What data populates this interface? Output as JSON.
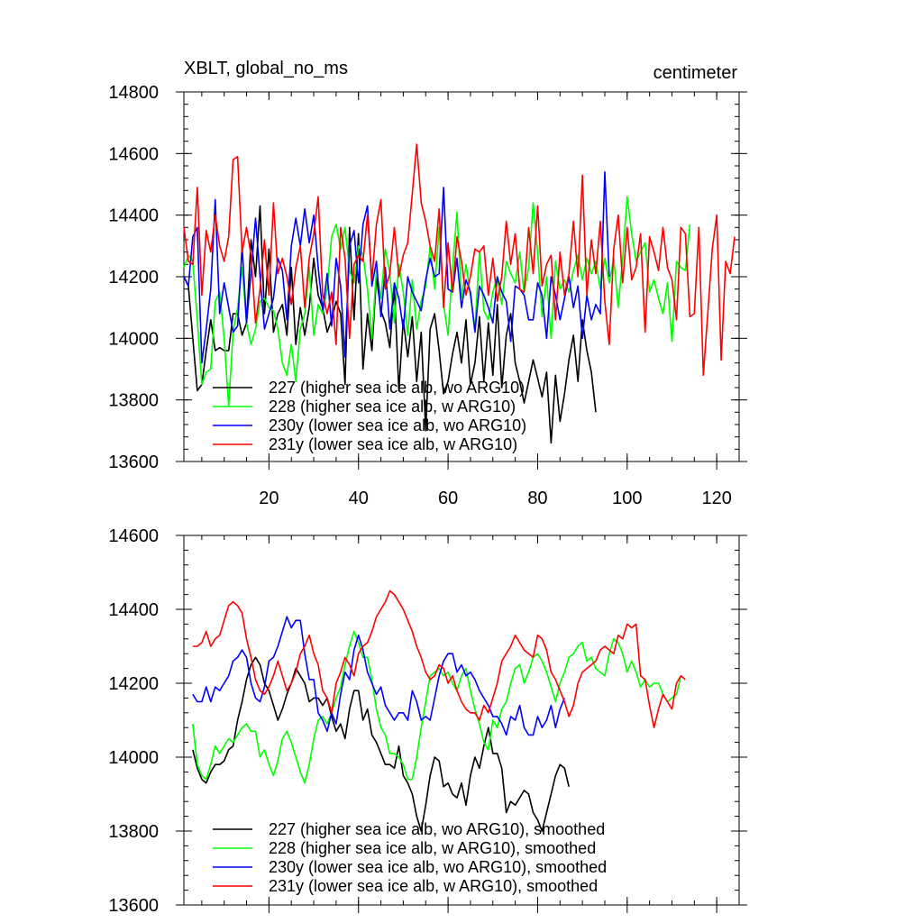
{
  "figure": {
    "title_left": "XBLT, global_no_ms",
    "title_right": "centimeter"
  },
  "colors": {
    "227": "#000000",
    "228": "#00ff00",
    "230y": "#0000ff",
    "231y": "#ff0000"
  },
  "chart_data": [
    {
      "type": "line",
      "title": "XBLT, global_no_ms",
      "units": "centimeter",
      "xlim": [
        1,
        125
      ],
      "ylim": [
        13600,
        14800
      ],
      "xticks": [
        20,
        40,
        60,
        80,
        100,
        120
      ],
      "xtick_labels": [
        "20",
        "40",
        "60",
        "80",
        "100",
        "120"
      ],
      "yticks": [
        13600,
        13800,
        14000,
        14200,
        14400,
        14600,
        14800
      ],
      "ytick_labels": [
        "13600",
        "13800",
        "14000",
        "14200",
        "14400",
        "14600",
        "14800"
      ],
      "series": [
        {
          "key": "227",
          "name": "227 (higher sea ice alb, wo ARG10)",
          "x_start": 1,
          "values": [
            14200,
            14170,
            14000,
            13830,
            13850,
            13960,
            14060,
            13960,
            13970,
            13960,
            13960,
            14080,
            14080,
            14010,
            14050,
            14320,
            14200,
            14430,
            14080,
            14290,
            14020,
            14080,
            14110,
            14010,
            14230,
            13980,
            14100,
            14010,
            14100,
            14260,
            14140,
            14100,
            14020,
            14060,
            14120,
            14080,
            13850,
            14360,
            14060,
            14340,
            13900,
            14080,
            13960,
            14200,
            14090,
            14050,
            13970,
            14170,
            13830,
            14060,
            13940,
            14070,
            13860,
            14020,
            13700,
            14030,
            14080,
            13960,
            13820,
            13860,
            13950,
            14020,
            13920,
            14060,
            13850,
            13920,
            14070,
            13860,
            14050,
            13880,
            14110,
            13840,
            14010,
            14080,
            13920,
            13860,
            13790,
            13860,
            13930,
            13870,
            13810,
            13890,
            13660,
            13880,
            13730,
            13820,
            13930,
            14010,
            13860,
            14060,
            13960,
            13890,
            13760
          ]
        },
        {
          "key": "228",
          "name": "228 (higher sea ice alb, w ARG10)",
          "x_start": 1,
          "values": [
            14230,
            14270,
            14250,
            14060,
            13850,
            13890,
            13900,
            14120,
            14150,
            14000,
            13780,
            14020,
            14100,
            14230,
            14050,
            13980,
            14030,
            14120,
            14130,
            14100,
            14090,
            14030,
            13920,
            13880,
            13980,
            13860,
            14030,
            14080,
            14230,
            14010,
            14110,
            14080,
            14160,
            14330,
            14370,
            14290,
            14360,
            14220,
            14180,
            14300,
            14270,
            14160,
            14000,
            14220,
            14130,
            14290,
            14210,
            14050,
            14240,
            14150,
            14010,
            14190,
            14030,
            14120,
            14170,
            14300,
            14160,
            14360,
            14110,
            14010,
            14230,
            14410,
            14130,
            14240,
            14140,
            14030,
            14280,
            14090,
            14060,
            14150,
            14200,
            14110,
            14250,
            14210,
            14180,
            14280,
            14150,
            14230,
            14440,
            14280,
            14070,
            14200,
            14000,
            14250,
            14160,
            14190,
            14150,
            14220,
            14270,
            14190,
            14260,
            14210,
            14250,
            14160,
            14260,
            14180,
            14260,
            14100,
            14260,
            14460,
            14340,
            14250,
            14280,
            14310,
            14150,
            14190,
            14130,
            14080,
            14180,
            13990,
            14250,
            14230,
            14220,
            14370
          ]
        },
        {
          "key": "230y",
          "name": "230y (lower sea ice alb, wo ARG10)",
          "x_start": 1,
          "values": [
            14200,
            14170,
            14330,
            14360,
            13920,
            14030,
            14160,
            14450,
            14080,
            14180,
            14100,
            14020,
            14040,
            14300,
            14050,
            14210,
            14390,
            14200,
            14030,
            14080,
            14130,
            14260,
            14220,
            14060,
            14300,
            14390,
            14300,
            14420,
            14310,
            14400,
            14230,
            14090,
            14210,
            14040,
            14260,
            14170,
            13940,
            14300,
            14350,
            14180,
            14370,
            14430,
            14170,
            14250,
            14070,
            14230,
            14030,
            14180,
            14130,
            14030,
            14200,
            14150,
            14120,
            14090,
            14190,
            14260,
            14200,
            14210,
            14490,
            14160,
            14150,
            14260,
            14100,
            14190,
            14150,
            14020,
            14170,
            14140,
            14100,
            14050,
            14200,
            14150,
            14120,
            13990,
            14170,
            14160,
            14140,
            14060,
            14060,
            14180,
            14140,
            14000,
            14200,
            14140,
            14060,
            14130,
            14200,
            14100,
            14170,
            14000,
            14140,
            14060,
            14110,
            14080,
            14540,
            14200
          ]
        },
        {
          "key": "231y",
          "name": "231y (lower sea ice alb, w ARG10)",
          "x_start": 1,
          "values": [
            14360,
            14250,
            14240,
            14490,
            14140,
            14350,
            14280,
            14400,
            14300,
            14250,
            14330,
            14580,
            14590,
            14280,
            14360,
            14270,
            14050,
            14160,
            14320,
            14140,
            14440,
            14210,
            14260,
            14200,
            14110,
            14230,
            14300,
            14100,
            14260,
            14340,
            14460,
            14140,
            14080,
            14150,
            13980,
            14360,
            14260,
            14000,
            14240,
            14270,
            14250,
            14400,
            14190,
            14370,
            14450,
            14160,
            14210,
            14360,
            14200,
            14270,
            14310,
            14470,
            14630,
            14440,
            14380,
            14300,
            14250,
            14420,
            14100,
            14310,
            14150,
            14330,
            14250,
            14140,
            14200,
            14290,
            14280,
            14300,
            14140,
            14260,
            14120,
            14200,
            14380,
            14240,
            14340,
            14160,
            14150,
            14360,
            14210,
            14430,
            14170,
            14240,
            14270,
            14060,
            14280,
            14140,
            14210,
            14380,
            14200,
            14530,
            14140,
            14320,
            14210,
            14380,
            14120,
            13980,
            14290,
            14400,
            14180,
            14360,
            14190,
            14230,
            14340,
            14020,
            14330,
            14280,
            14220,
            14360,
            14230,
            14190,
            14060,
            14360,
            14340,
            14070,
            14080,
            14360,
            13880,
            14080,
            14290,
            14400,
            13930,
            14250,
            14210,
            14330
          ]
        }
      ],
      "legend": [
        "227 (higher sea ice alb, wo ARG10)",
        "228 (higher sea ice alb, w ARG10)",
        "230y (lower sea ice alb, wo ARG10)",
        "231y (lower sea ice alb, w ARG10)"
      ],
      "legend_position": "bottom-left"
    },
    {
      "type": "line",
      "xlim": [
        1,
        125
      ],
      "ylim": [
        13600,
        14600
      ],
      "xticks": [
        20,
        40,
        60,
        80,
        100,
        120
      ],
      "yticks": [
        13600,
        13800,
        14000,
        14200,
        14400,
        14600
      ],
      "ytick_labels": [
        "13600",
        "13800",
        "14000",
        "14200",
        "14400",
        "14600"
      ],
      "series": [
        {
          "key": "227",
          "name": "227 (higher sea ice alb, wo ARG10), smoothed",
          "x_start": 3,
          "values": [
            14020,
            13970,
            13940,
            13930,
            13960,
            13980,
            13980,
            13990,
            14020,
            14030,
            14100,
            14150,
            14210,
            14250,
            14270,
            14250,
            14200,
            14180,
            14140,
            14100,
            14130,
            14170,
            14200,
            14240,
            14220,
            14200,
            14150,
            14160,
            14160,
            14140,
            14160,
            14110,
            14070,
            14090,
            14050,
            14130,
            14180,
            14180,
            14100,
            14130,
            14060,
            14040,
            14010,
            13980,
            13980,
            13970,
            14030,
            13950,
            13930,
            13900,
            13840,
            13800,
            13870,
            13950,
            14000,
            13990,
            13920,
            13930,
            13900,
            13890,
            13930,
            13870,
            13950,
            14000,
            13970,
            14030,
            14080,
            14010,
            14010,
            13970,
            13850,
            13880,
            13870,
            13890,
            13910,
            13900,
            13850,
            13830,
            13800,
            13850,
            13900,
            13950,
            13980,
            13970,
            13920
          ]
        },
        {
          "key": "228",
          "name": "228 (higher sea ice alb, w ARG10), smoothed",
          "x_start": 3,
          "values": [
            14090,
            13980,
            13950,
            13940,
            13980,
            14030,
            14010,
            14030,
            14050,
            14040,
            14060,
            14080,
            14090,
            14070,
            14070,
            14000,
            14020,
            13980,
            13950,
            13990,
            14050,
            14070,
            14040,
            14000,
            13960,
            13930,
            13980,
            14050,
            14100,
            14110,
            14090,
            14120,
            14160,
            14190,
            14250,
            14300,
            14340,
            14310,
            14270,
            14270,
            14210,
            14130,
            14080,
            14060,
            14010,
            14010,
            14000,
            13980,
            13940,
            13940,
            14000,
            14080,
            14150,
            14220,
            14230,
            14240,
            14220,
            14230,
            14200,
            14180,
            14220,
            14240,
            14180,
            14130,
            14090,
            14040,
            14020,
            14100,
            14080,
            14130,
            14150,
            14200,
            14240,
            14250,
            14200,
            14230,
            14270,
            14280,
            14260,
            14230,
            14190,
            14150,
            14200,
            14230,
            14270,
            14280,
            14300,
            14310,
            14260,
            14270,
            14240,
            14230,
            14220,
            14280,
            14320,
            14310,
            14280,
            14230,
            14260,
            14230,
            14190,
            14210,
            14190,
            14200,
            14200,
            14170,
            14150,
            14160,
            14170,
            14220
          ]
        },
        {
          "key": "230y",
          "name": "230y (lower sea ice alb, wo ARG10), smoothed",
          "x_start": 3,
          "values": [
            14170,
            14150,
            14150,
            14190,
            14150,
            14190,
            14180,
            14200,
            14220,
            14260,
            14270,
            14290,
            14270,
            14200,
            14160,
            14150,
            14190,
            14260,
            14270,
            14300,
            14340,
            14380,
            14350,
            14370,
            14370,
            14280,
            14210,
            14210,
            14120,
            14100,
            14070,
            14120,
            14090,
            14170,
            14230,
            14210,
            14290,
            14330,
            14290,
            14230,
            14200,
            14170,
            14190,
            14140,
            14120,
            14100,
            14120,
            14120,
            14100,
            14180,
            14150,
            14100,
            14110,
            14100,
            14160,
            14220,
            14260,
            14280,
            14280,
            14230,
            14250,
            14220,
            14230,
            14210,
            14180,
            14160,
            14140,
            14110,
            14110,
            14090,
            14060,
            14110,
            14100,
            14140,
            14080,
            14060,
            14060,
            14110,
            14080,
            14100,
            14140,
            14080,
            14130,
            14160
          ]
        },
        {
          "key": "231y",
          "name": "231y (lower sea ice alb, w ARG10), smoothed",
          "x_start": 3,
          "values": [
            14300,
            14300,
            14310,
            14340,
            14300,
            14320,
            14330,
            14370,
            14410,
            14420,
            14410,
            14390,
            14320,
            14270,
            14210,
            14180,
            14170,
            14190,
            14220,
            14260,
            14220,
            14180,
            14200,
            14230,
            14280,
            14300,
            14330,
            14280,
            14250,
            14180,
            14160,
            14120,
            14200,
            14230,
            14270,
            14250,
            14220,
            14280,
            14300,
            14310,
            14340,
            14380,
            14400,
            14420,
            14450,
            14440,
            14420,
            14400,
            14370,
            14340,
            14300,
            14270,
            14230,
            14210,
            14220,
            14250,
            14240,
            14200,
            14220,
            14180,
            14150,
            14130,
            14120,
            14120,
            14100,
            14140,
            14120,
            14160,
            14200,
            14260,
            14280,
            14300,
            14330,
            14310,
            14290,
            14280,
            14270,
            14330,
            14320,
            14290,
            14230,
            14210,
            14180,
            14150,
            14110,
            14140,
            14200,
            14230,
            14240,
            14250,
            14260,
            14290,
            14300,
            14290,
            14280,
            14330,
            14320,
            14360,
            14350,
            14360,
            14220,
            14210,
            14140,
            14080,
            14130,
            14170,
            14150,
            14130,
            14200,
            14220,
            14210
          ]
        }
      ],
      "legend": [
        "227 (higher sea ice alb, wo ARG10), smoothed",
        "228 (higher sea ice alb, w ARG10), smoothed",
        "230y (lower sea ice alb, wo ARG10), smoothed",
        "231y (lower sea ice alb, w ARG10), smoothed"
      ],
      "legend_position": "bottom-left"
    }
  ]
}
